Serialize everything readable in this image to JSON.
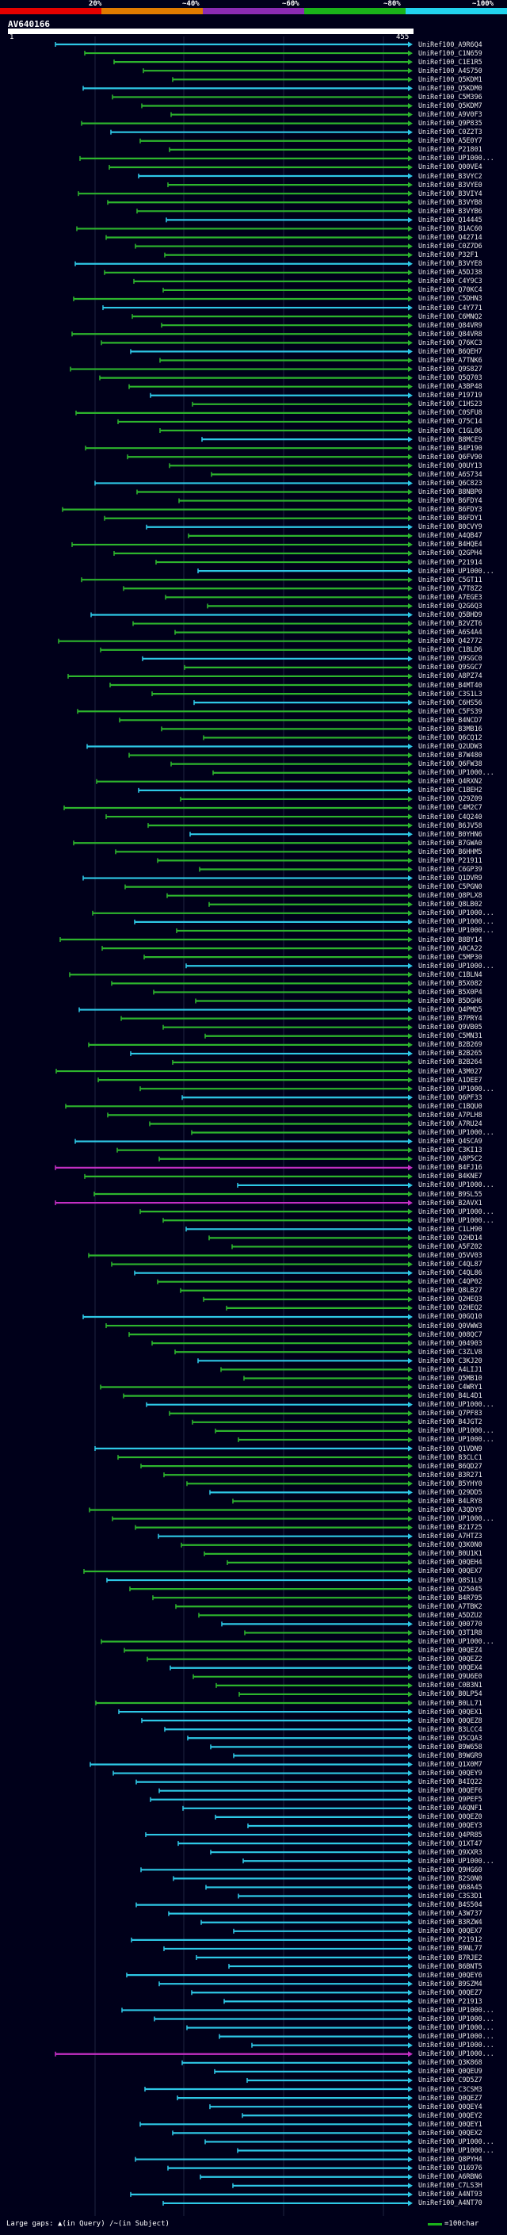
{
  "scale": {
    "ticks": [
      "20%",
      "~40%",
      "~60%",
      "~80%",
      "~100%"
    ],
    "colors": [
      "#e60000",
      "#e07b00",
      "#8b2bb3",
      "#1ab21a",
      "#22d3ee"
    ]
  },
  "query": {
    "name": "AV640166",
    "start": "1",
    "end": "455"
  },
  "legend": {
    "gaps_label": "Large gaps: ",
    "in_query": "▲(in Query)",
    "in_subject": "/~(in Subject)",
    "char_label": "=100char"
  },
  "hit_colors": {
    "green": "#2db52d",
    "cyan": "#2ec8e6",
    "magenta": "#c42fc4"
  },
  "hits": [
    "UniRef100_A9R6Q4",
    "UniRef100_C1N659",
    "UniRef100_C1E1R5",
    "UniRef100_A4S750",
    "UniRef100_Q5KDM1",
    "UniRef100_Q5KDM0",
    "UniRef100_C5M396",
    "UniRef100_Q5KDM7",
    "UniRef100_A9V0F3",
    "UniRef100_Q9P835",
    "UniRef100_C0Z2T3",
    "UniRef100_A5E0Y7",
    "UniRef100_P21801",
    "UniRef100_UP1000...",
    "UniRef100_Q00VE4",
    "UniRef100_B3VYC2",
    "UniRef100_B3VYE0",
    "UniRef100_B3VIY4",
    "UniRef100_B3VYB8",
    "UniRef100_B3VYB6",
    "UniRef100_Q14445",
    "UniRef100_B1AC60",
    "UniRef100_Q42714",
    "UniRef100_C0Z7D6",
    "UniRef100_P32F1",
    "UniRef100_B3VYE8",
    "UniRef100_A5DJ38",
    "UniRef100_C4Y9C3",
    "UniRef100_Q70KC4",
    "UniRef100_C5DHN3",
    "UniRef100_C4Y771",
    "UniRef100_C6MNQ2",
    "UniRef100_Q84VR9",
    "UniRef100_Q84VR8",
    "UniRef100_Q76KC3",
    "UniRef100_B6QEH7",
    "UniRef100_A7TNK6",
    "UniRef100_Q9S827",
    "UniRef100_Q5Q703",
    "UniRef100_A3BP48",
    "UniRef100_P19719",
    "UniRef100_C1HS23",
    "UniRef100_C0SFU8",
    "UniRef100_Q75C14",
    "UniRef100_C1GL06",
    "UniRef100_B8MCE9",
    "UniRef100_B4P190",
    "UniRef100_Q6FV90",
    "UniRef100_Q0UY13",
    "UniRef100_A6S734",
    "UniRef100_Q6C823",
    "UniRef100_B8NBP0",
    "UniRef100_B6FDY4",
    "UniRef100_B6FDY3",
    "UniRef100_B6FDY1",
    "UniRef100_B0CVY9",
    "UniRef100_A4QB47",
    "UniRef100_B4HQE4",
    "UniRef100_Q2GPH4",
    "UniRef100_P21914",
    "UniRef100_UP1000...",
    "UniRef100_C5GT11",
    "UniRef100_A7T8Z2",
    "UniRef100_A7EGE3",
    "UniRef100_Q2G6Q3",
    "UniRef100_Q5BHD9",
    "UniRef100_B2VZT6",
    "UniRef100_A6S4A4",
    "UniRef100_Q42772",
    "UniRef100_C1BLD6",
    "UniRef100_Q9SGC0",
    "UniRef100_Q9SGC7",
    "UniRef100_A8PZ74",
    "UniRef100_B4MT40",
    "UniRef100_C3S1L3",
    "UniRef100_C6HS56",
    "UniRef100_C5FS39",
    "UniRef100_B4NCD7",
    "UniRef100_B3MB16",
    "UniRef100_Q6CQ12",
    "UniRef100_Q2UDW3",
    "UniRef100_B7W480",
    "UniRef100_Q6FW38",
    "UniRef100_UP1000...",
    "UniRef100_Q4RXN2",
    "UniRef100_C1BEH2",
    "UniRef100_Q29Z09",
    "UniRef100_C4M2C7",
    "UniRef100_C4Q240",
    "UniRef100_B6JV58",
    "UniRef100_B0YHN6",
    "UniRef100_B7GWA0",
    "UniRef100_B6HHM5",
    "UniRef100_P21911",
    "UniRef100_C6GP39",
    "UniRef100_Q1DVR9",
    "UniRef100_C5PGN0",
    "UniRef100_Q8PLX8",
    "UniRef100_Q8LB02",
    "UniRef100_UP1000...",
    "UniRef100_UP1000...",
    "UniRef100_UP1000...",
    "UniRef100_B8BY14",
    "UniRef100_A0CA22",
    "UniRef100_C5MP30",
    "UniRef100_UP1000...",
    "UniRef100_C1BLN4",
    "UniRef100_B5X082",
    "UniRef100_B5X0P4",
    "UniRef100_B5DGH6",
    "UniRef100_Q4PMD5",
    "UniRef100_B7PRY4",
    "UniRef100_Q9VB05",
    "UniRef100_C5MN31",
    "UniRef100_B2B269",
    "UniRef100_B2B265",
    "UniRef100_B2B264",
    "UniRef100_A3M027",
    "UniRef100_A1DEE7",
    "UniRef100_UP1000...",
    "UniRef100_Q6PF33",
    "UniRef100_C1BQU0",
    "UniRef100_A7PLH8",
    "UniRef100_A7RU24",
    "UniRef100_UP1000...",
    "UniRef100_Q4SCA9",
    "UniRef100_C3KI13",
    "UniRef100_A8P5C2",
    "UniRef100_B4FJ16",
    "UniRef100_B4KNE7",
    "UniRef100_UP1000...",
    "UniRef100_B9SL55",
    "UniRef100_B2AVX1",
    "UniRef100_UP1000...",
    "UniRef100_UP1000...",
    "UniRef100_C1LH90",
    "UniRef100_Q2HD14",
    "UniRef100_A5FZ02",
    "UniRef100_Q5VV03",
    "UniRef100_C4QL87",
    "UniRef100_C4QL86",
    "UniRef100_C4QP02",
    "UniRef100_Q8LB27",
    "UniRef100_Q2HEQ3",
    "UniRef100_Q2HEQ2",
    "UniRef100_Q0GQ10",
    "UniRef100_Q0VWW3",
    "UniRef100_Q08QC7",
    "UniRef100_Q04903",
    "UniRef100_C3ZLV8",
    "UniRef100_C3KJ20",
    "UniRef100_A4LIJ1",
    "UniRef100_Q5MB10",
    "UniRef100_C4WRY1",
    "UniRef100_B4L4D1",
    "UniRef100_UP1000...",
    "UniRef100_Q7PF83",
    "UniRef100_B4JGT2",
    "UniRef100_UP1000...",
    "UniRef100_UP1000...",
    "UniRef100_Q1VDN9",
    "UniRef100_B3CLC1",
    "UniRef100_B6QD27",
    "UniRef100_B3R271",
    "UniRef100_B5YHY0",
    "UniRef100_Q29DD5",
    "UniRef100_B4LRY8",
    "UniRef100_A3QDY9",
    "UniRef100_UP1000...",
    "UniRef100_B21725",
    "UniRef100_A7HTZ3",
    "UniRef100_Q3K0N0",
    "UniRef100_B0U1K1",
    "UniRef100_Q0QEH4",
    "UniRef100_Q0QEX7",
    "UniRef100_Q8S1L9",
    "UniRef100_Q25045",
    "UniRef100_B4R795",
    "UniRef100_A7TBK2",
    "UniRef100_A5DZU2",
    "UniRef100_Q00770",
    "UniRef100_Q3T1R8",
    "UniRef100_UP1000...",
    "UniRef100_Q0QEZ4",
    "UniRef100_Q0QEZ2",
    "UniRef100_Q0QEX4",
    "UniRef100_Q9U6E0",
    "UniRef100_C0B3N1",
    "UniRef100_B0LP54",
    "UniRef100_B0LL71",
    "UniRef100_Q0QEX1",
    "UniRef100_Q0QEZ8",
    "UniRef100_B3LCC4",
    "UniRef100_Q5CQA3",
    "UniRef100_B9W658",
    "UniRef100_B9WGR9",
    "UniRef100_Q1X0M7",
    "UniRef100_Q0QEY9",
    "UniRef100_B4IQ22",
    "UniRef100_Q0QEF6",
    "UniRef100_Q9PEF5",
    "UniRef100_A6QNF1",
    "UniRef100_Q0QEZ0",
    "UniRef100_Q0QEY3",
    "UniRef100_Q4PR85",
    "UniRef100_Q1XT47",
    "UniRef100_Q9XXR3",
    "UniRef100_UP1000...",
    "UniRef100_Q9HG60",
    "UniRef100_B2S0N0",
    "UniRef100_Q68A45",
    "UniRef100_C3S3D1",
    "UniRef100_B4S504",
    "UniRef100_A3W737",
    "UniRef100_B3RZW4",
    "UniRef100_Q0QEX7",
    "UniRef100_P21912",
    "UniRef100_B9NL77",
    "UniRef100_B7RJE2",
    "UniRef100_B6BNT5",
    "UniRef100_Q0QEY6",
    "UniRef100_B9SZM4",
    "UniRef100_Q0QEZ7",
    "UniRef100_P21913",
    "UniRef100_UP1000...",
    "UniRef100_UP1000...",
    "UniRef100_UP1000...",
    "UniRef100_UP1000...",
    "UniRef100_UP1000...",
    "UniRef100_UP1000...",
    "UniRef100_Q3K868",
    "UniRef100_Q0QEU9",
    "UniRef100_C9D5Z7",
    "UniRef100_C3CSM3",
    "UniRef100_Q0QEZ7",
    "UniRef100_Q0QEY4",
    "UniRef100_Q0QEY2",
    "UniRef100_Q0QEY1",
    "UniRef100_Q0QEX2",
    "UniRef100_UP1000...",
    "UniRef100_UP1000...",
    "UniRef100_Q8PYH4",
    "UniRef100_Q16976",
    "UniRef100_A6RBN6",
    "UniRef100_C7LS3H",
    "UniRef100_A4NT93",
    "UniRef100_A4NT70"
  ]
}
